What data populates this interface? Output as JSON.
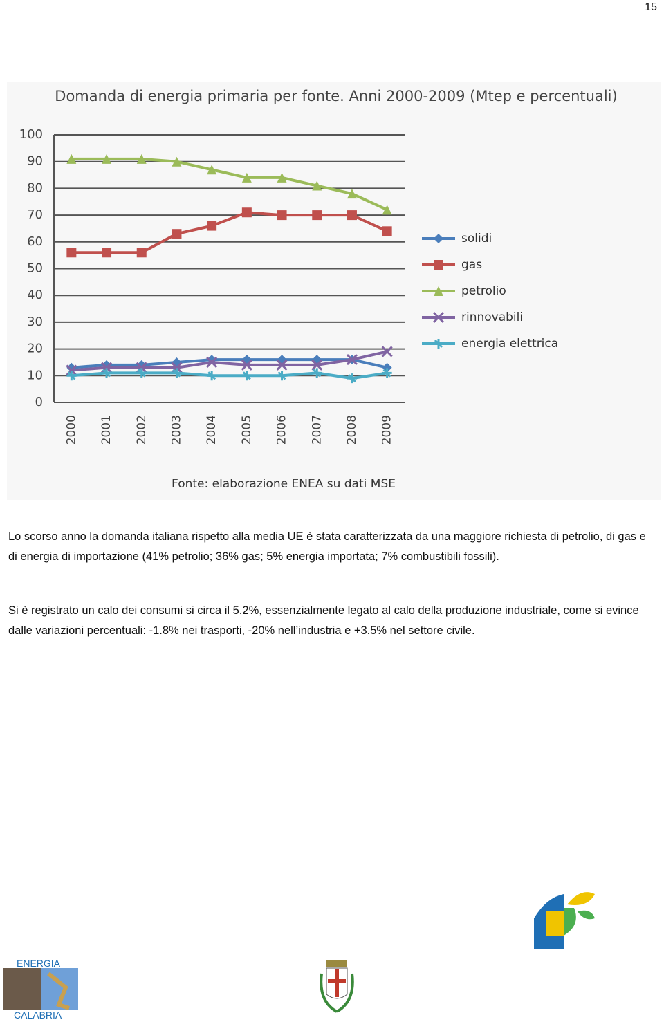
{
  "page_number": "15",
  "chart_data": {
    "type": "line",
    "title": "Domanda di energia primaria per fonte. Anni 2000-2009 (Mtep e percentuali)",
    "source": "Fonte: elaborazione ENEA su dati MSE",
    "categories": [
      "2000",
      "2001",
      "2002",
      "2003",
      "2004",
      "2005",
      "2006",
      "2007",
      "2008",
      "2009"
    ],
    "ylim": [
      0,
      100
    ],
    "yticks": [
      0,
      10,
      20,
      30,
      40,
      50,
      60,
      70,
      80,
      90,
      100
    ],
    "grid": true,
    "legend": "right",
    "series": [
      {
        "name": "solidi",
        "color": "#4a7ebb",
        "marker": "diamond",
        "values": [
          13,
          14,
          14,
          15,
          16,
          16,
          16,
          16,
          16,
          13
        ]
      },
      {
        "name": "gas",
        "color": "#c0504d",
        "marker": "square",
        "values": [
          56,
          56,
          56,
          63,
          66,
          71,
          70,
          70,
          70,
          64
        ]
      },
      {
        "name": "petrolio",
        "color": "#9bbb59",
        "marker": "triangle",
        "values": [
          91,
          91,
          91,
          90,
          87,
          84,
          84,
          81,
          78,
          72
        ]
      },
      {
        "name": "rinnovabili",
        "color": "#8064a2",
        "marker": "x",
        "values": [
          12,
          13,
          13,
          13,
          15,
          14,
          14,
          14,
          16,
          19
        ]
      },
      {
        "name": "energia elettrica",
        "color": "#4bacc6",
        "marker": "star",
        "values": [
          10,
          11,
          11,
          11,
          10,
          10,
          10,
          11,
          9,
          11
        ]
      }
    ]
  },
  "paragraphs": [
    "Lo scorso anno la domanda italiana rispetto alla media UE è stata caratterizzata da una maggiore richiesta di petrolio, di gas e di energia di importazione (41% petrolio; 36% gas; 5% energia importata; 7% combustibili fossili).",
    "Si è registrato un calo dei consumi si circa il 5.2%, essenzialmente legato al calo della produzione industriale, come si evince dalle variazioni percentuali: -1.8% nei trasporti, -20% nell’industria e +3.5% nel settore civile."
  ],
  "footer": {
    "logo_top": "ENERGIA",
    "logo_bottom": "CALABRIA"
  }
}
